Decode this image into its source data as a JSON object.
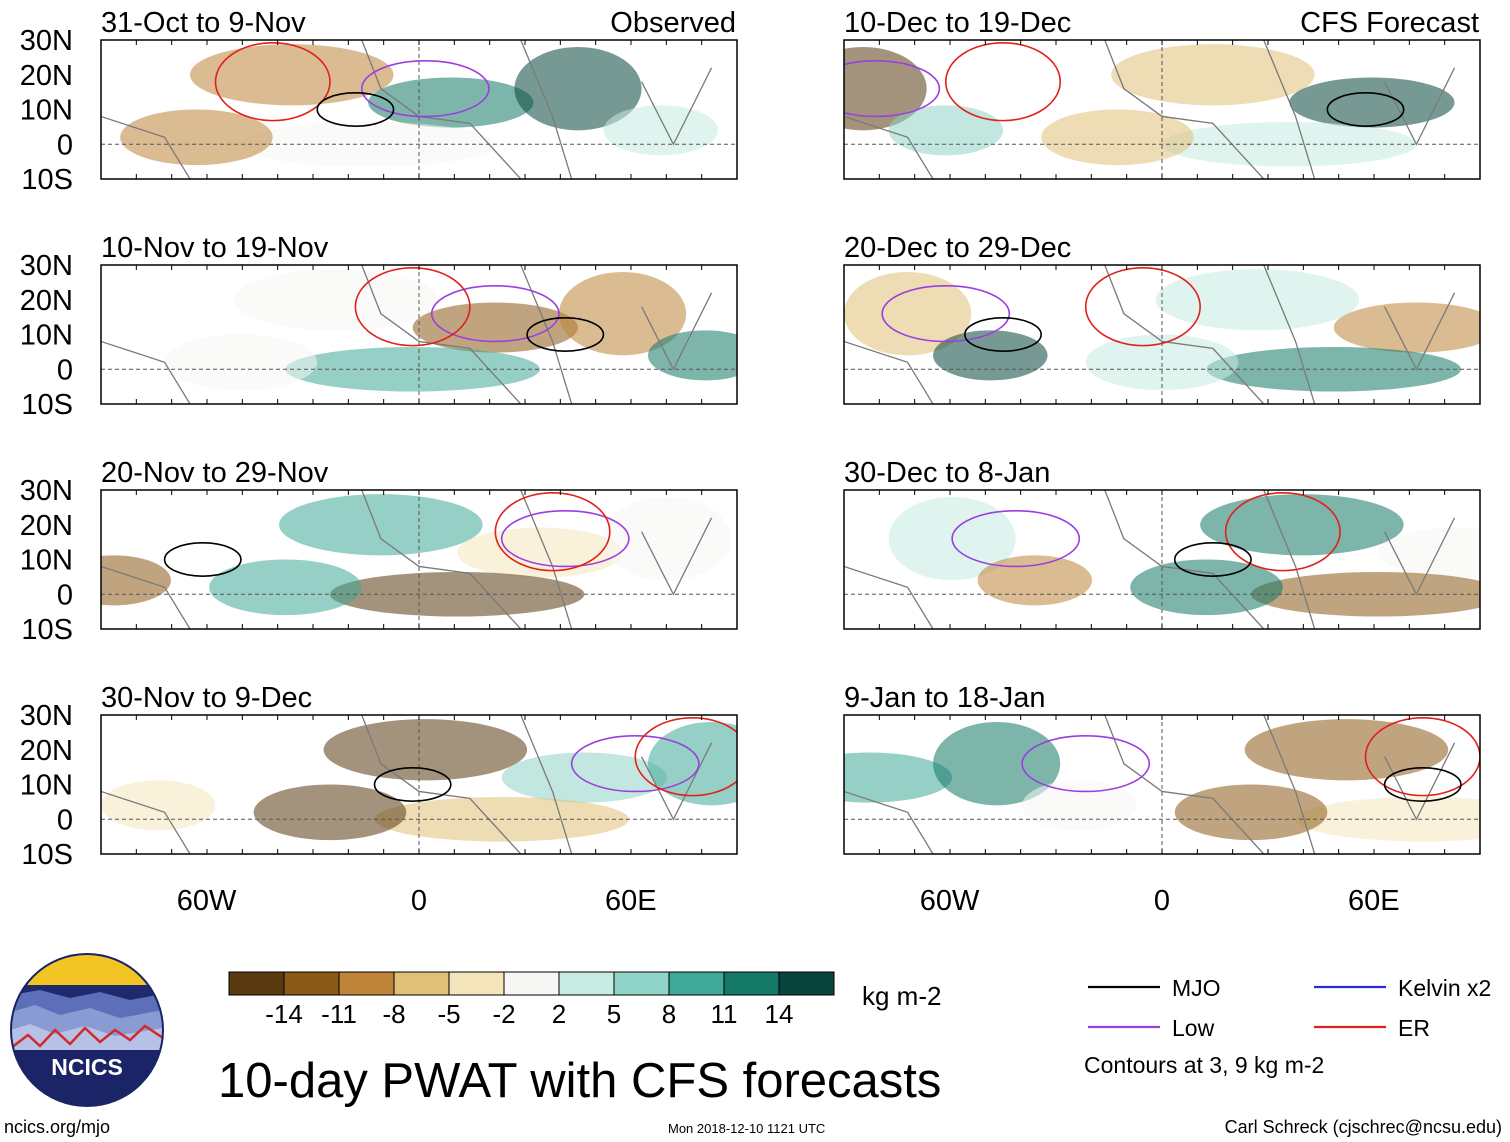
{
  "chart_data": {
    "type": "map-panels",
    "title": "10-day PWAT with CFS forecasts",
    "units": "kg m-2",
    "observed_label": "Observed",
    "forecast_label": "CFS Forecast",
    "lat_ticks": [
      "30N",
      "20N",
      "10N",
      "0",
      "10S"
    ],
    "lon_ticks": [
      "60W",
      "0",
      "60E"
    ],
    "panels": [
      {
        "period": "31-Oct to 9-Nov",
        "source": "observed"
      },
      {
        "period": "10-Nov to 19-Nov",
        "source": "observed"
      },
      {
        "period": "20-Nov to 29-Nov",
        "source": "observed"
      },
      {
        "period": "30-Nov to 9-Dec",
        "source": "observed"
      },
      {
        "period": "10-Dec to 19-Dec",
        "source": "forecast"
      },
      {
        "period": "20-Dec to 29-Dec",
        "source": "forecast"
      },
      {
        "period": "30-Dec to 8-Jan",
        "source": "forecast"
      },
      {
        "period": "9-Jan to 18-Jan",
        "source": "forecast"
      }
    ],
    "colorbar": {
      "colors": [
        "#5a3a10",
        "#8b5a16",
        "#be8438",
        "#e0c079",
        "#f5e5bd",
        "#f6f6f4",
        "#c6ebe1",
        "#8fd4c6",
        "#3fa896",
        "#137866",
        "#08463d"
      ],
      "labels": [
        "-14",
        "-11",
        "-8",
        "-5",
        "-2",
        "2",
        "5",
        "8",
        "11",
        "14"
      ]
    },
    "legend": [
      {
        "name": "MJO",
        "color": "#000000"
      },
      {
        "name": "Kelvin x2",
        "color": "#2b2bd6"
      },
      {
        "name": "Low",
        "color": "#9b3ee0"
      },
      {
        "name": "ER",
        "color": "#e0201b"
      }
    ],
    "contour_note": "Contours at 3, 9 kg m-2"
  },
  "footer": {
    "logo_text": "NCICS",
    "url": "ncics.org/mjo",
    "timestamp": "Mon 2018-12-10 1121 UTC",
    "author": "Carl Schreck (cjschrec@ncsu.edu)"
  }
}
